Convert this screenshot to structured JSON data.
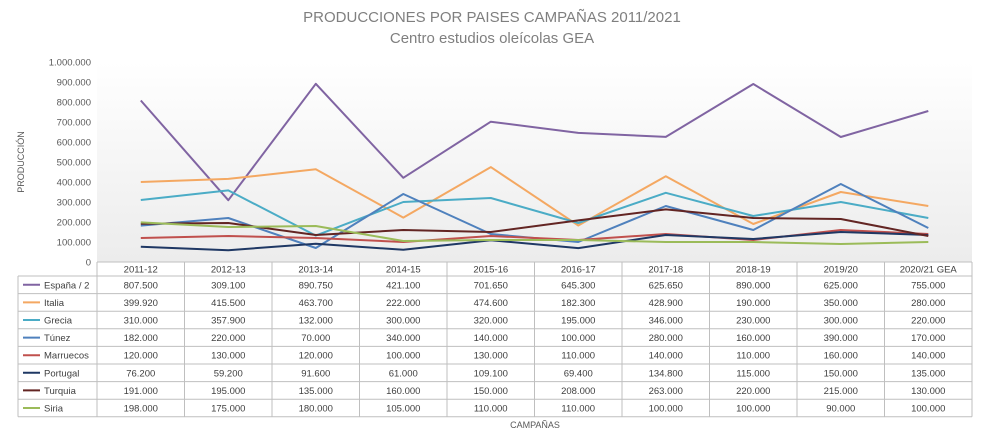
{
  "chart_data": {
    "type": "line",
    "title": "PRODUCCIONES POR PAISES CAMPAÑAS 2011/2021",
    "subtitle": "Centro estudios oleícolas GEA",
    "xlabel": "CAMPAÑAS",
    "ylabel": "PRODUCCIÓN",
    "ylim": [
      0,
      1000000
    ],
    "yticks": [
      0,
      100000,
      200000,
      300000,
      400000,
      500000,
      600000,
      700000,
      800000,
      900000,
      1000000
    ],
    "ytick_labels": [
      "0",
      "100.000",
      "200.000",
      "300.000",
      "400.000",
      "500.000",
      "600.000",
      "700.000",
      "800.000",
      "900.000",
      "1.000.000"
    ],
    "grid": false,
    "legend": "data-table",
    "categories": [
      "2011-12",
      "2012-13",
      "2013-14",
      "2014-15",
      "2015-16",
      "2016-17",
      "2017-18",
      "2018-19",
      "2019/20",
      "2020/21 GEA"
    ],
    "series": [
      {
        "name": "España / 2",
        "color": "#8064a2",
        "values": [
          807500,
          309100,
          890750,
          421100,
          701650,
          645300,
          625650,
          890000,
          625000,
          755000
        ],
        "labels": [
          "807.500",
          "309.100",
          "890.750",
          "421.100",
          "701.650",
          "645.300",
          "625.650",
          "890.000",
          "625.000",
          "755.000"
        ]
      },
      {
        "name": "Italia",
        "color": "#f4a862",
        "values": [
          399920,
          415500,
          463700,
          222000,
          474600,
          182300,
          428900,
          190000,
          350000,
          280000
        ],
        "labels": [
          "399.920",
          "415.500",
          "463.700",
          "222.000",
          "474.600",
          "182.300",
          "428.900",
          "190.000",
          "350.000",
          "280.000"
        ]
      },
      {
        "name": "Grecia",
        "color": "#4bacc6",
        "values": [
          310000,
          357900,
          132000,
          300000,
          320000,
          195000,
          346000,
          230000,
          300000,
          220000
        ],
        "labels": [
          "310.000",
          "357.900",
          "132.000",
          "300.000",
          "320.000",
          "195.000",
          "346.000",
          "230.000",
          "300.000",
          "220.000"
        ]
      },
      {
        "name": "Túnez",
        "color": "#4f81bd",
        "values": [
          182000,
          220000,
          70000,
          340000,
          140000,
          100000,
          280000,
          160000,
          390000,
          170000
        ],
        "labels": [
          "182.000",
          "220.000",
          "70.000",
          "340.000",
          "140.000",
          "100.000",
          "280.000",
          "160.000",
          "390.000",
          "170.000"
        ]
      },
      {
        "name": "Marruecos",
        "color": "#c0504d",
        "values": [
          120000,
          130000,
          120000,
          100000,
          130000,
          110000,
          140000,
          110000,
          160000,
          140000
        ],
        "labels": [
          "120.000",
          "130.000",
          "120.000",
          "100.000",
          "130.000",
          "110.000",
          "140.000",
          "110.000",
          "160.000",
          "140.000"
        ]
      },
      {
        "name": "Portugal",
        "color": "#1f3864",
        "values": [
          76200,
          59200,
          91600,
          61000,
          109100,
          69400,
          134800,
          115000,
          150000,
          135000
        ],
        "labels": [
          "76.200",
          "59.200",
          "91.600",
          "61.000",
          "109.100",
          "69.400",
          "134.800",
          "115.000",
          "150.000",
          "135.000"
        ]
      },
      {
        "name": "Turquia",
        "color": "#632523",
        "values": [
          191000,
          195000,
          135000,
          160000,
          150000,
          208000,
          263000,
          220000,
          215000,
          130000
        ],
        "labels": [
          "191.000",
          "195.000",
          "135.000",
          "160.000",
          "150.000",
          "208.000",
          "263.000",
          "220.000",
          "215.000",
          "130.000"
        ]
      },
      {
        "name": "Siria",
        "color": "#9bbb59",
        "values": [
          198000,
          175000,
          180000,
          105000,
          110000,
          110000,
          100000,
          100000,
          90000,
          100000
        ],
        "labels": [
          "198.000",
          "175.000",
          "180.000",
          "105.000",
          "110.000",
          "110.000",
          "100.000",
          "100.000",
          "90.000",
          "100.000"
        ]
      }
    ]
  }
}
